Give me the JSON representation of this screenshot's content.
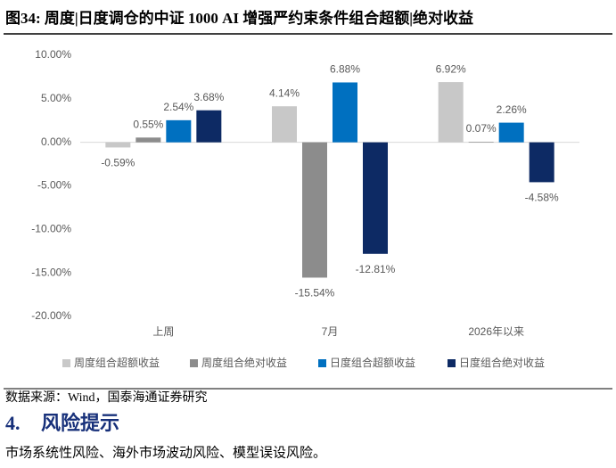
{
  "figure_title": "图34:  周度|日度调仓的中证 1000 AI 增强严约束条件组合超额|绝对收益",
  "chart_data": {
    "type": "bar",
    "categories": [
      "上周",
      "7月",
      "2026年以来"
    ],
    "series": [
      {
        "name": "周度组合超额收益",
        "color": "#c8c8c8",
        "values": [
          -0.59,
          4.14,
          6.92
        ],
        "value_labels": [
          "-0.59%",
          "4.14%",
          "6.92%"
        ]
      },
      {
        "name": "周度组合绝对收益",
        "color": "#8c8c8c",
        "values": [
          0.55,
          -15.54,
          0.07
        ],
        "value_labels": [
          "0.55%",
          "-15.54%",
          "0.07%"
        ]
      },
      {
        "name": "日度组合超额收益",
        "color": "#0070c0",
        "values": [
          2.54,
          6.88,
          2.26
        ],
        "value_labels": [
          "2.54%",
          "6.88%",
          "2.26%"
        ]
      },
      {
        "name": "日度组合绝对收益",
        "color": "#0d2a64",
        "values": [
          3.68,
          -12.81,
          -4.58
        ],
        "value_labels": [
          "3.68%",
          "-12.81%",
          "-4.58%"
        ]
      }
    ],
    "ylim": [
      -20,
      10
    ],
    "yticks": [
      {
        "value": -20,
        "label": "-20.00%"
      },
      {
        "value": -15,
        "label": "-15.00%"
      },
      {
        "value": -10,
        "label": "-10.00%"
      },
      {
        "value": -5,
        "label": "-5.00%"
      },
      {
        "value": 0,
        "label": "0.00%"
      },
      {
        "value": 5,
        "label": "5.00%"
      },
      {
        "value": 10,
        "label": "10.00%"
      }
    ],
    "grid": false,
    "legend": "bottom"
  },
  "source": "数据来源：Wind，国泰海通证券研究",
  "section": {
    "number": "4.",
    "title": "风险提示"
  },
  "body": "市场系统性风险、海外市场波动风险、模型误设风险。"
}
